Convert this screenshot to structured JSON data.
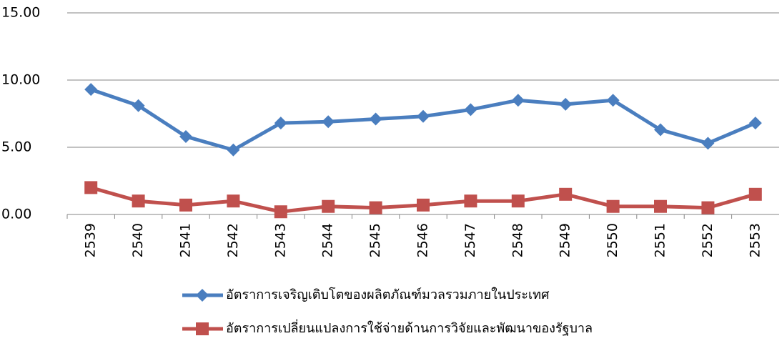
{
  "chart_data": {
    "type": "line",
    "categories": [
      "2539",
      "2540",
      "2541",
      "2542",
      "2543",
      "2544",
      "2545",
      "2546",
      "2547",
      "2548",
      "2549",
      "2550",
      "2551",
      "2552",
      "2553"
    ],
    "series": [
      {
        "name": "อัตราการเจริญเติบโตของผลิตภัณฑ์มวลรวมภายในประเทศ",
        "color": "#4a7ebf",
        "marker": "diamond",
        "values": [
          9.3,
          8.1,
          5.8,
          4.8,
          6.8,
          6.9,
          7.1,
          7.3,
          7.8,
          8.5,
          8.2,
          8.5,
          6.3,
          5.3,
          6.8
        ]
      },
      {
        "name": "อัตราการเปลี่ยนแปลงการใช้จ่ายด้านการวิจัยและพัฒนาของรัฐบาล",
        "color": "#c0504d",
        "marker": "square",
        "values": [
          2.0,
          1.0,
          0.7,
          1.0,
          0.2,
          0.6,
          0.5,
          0.7,
          1.0,
          1.0,
          1.5,
          0.6,
          0.6,
          0.5,
          1.5
        ]
      }
    ],
    "ylim": [
      0,
      15
    ],
    "yticks": [
      {
        "value": 0,
        "label": "0.00"
      },
      {
        "value": 5,
        "label": "5.00"
      },
      {
        "value": 10,
        "label": "10.00"
      },
      {
        "value": 15,
        "label": "15.00"
      }
    ],
    "grid": true
  }
}
